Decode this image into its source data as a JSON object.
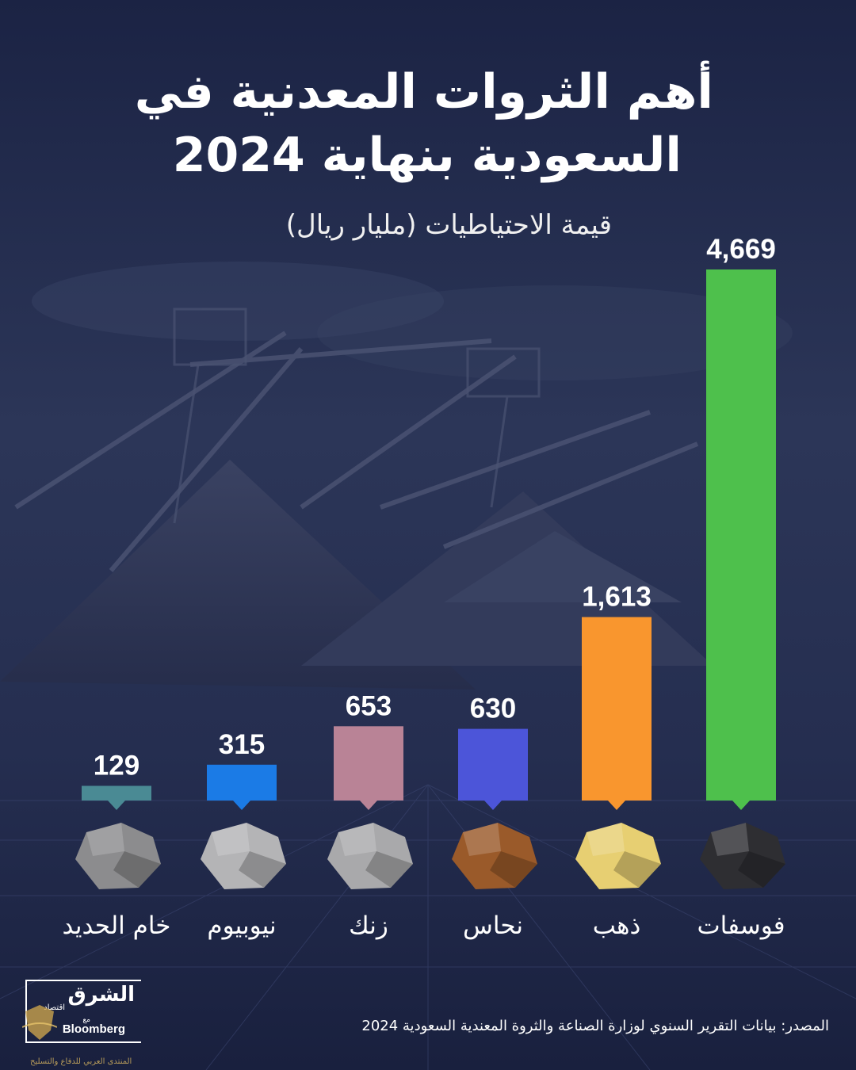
{
  "title_line1": "أهم الثروات المعدنية في",
  "title_line2": "السعودية بنهاية 2024",
  "subtitle": "قيمة الاحتياطيات (مليار ريال)",
  "chart_data": {
    "type": "bar",
    "title": "أهم الثروات المعدنية في السعودية بنهاية 2024",
    "ylabel": "قيمة الاحتياطيات (مليار ريال)",
    "ylim": [
      0,
      4669
    ],
    "grid": false,
    "legend": "none",
    "categories": [
      "فوسفات",
      "ذهب",
      "نحاس",
      "زنك",
      "نيوبيوم",
      "خام الحديد"
    ],
    "value_labels": [
      "4,669",
      "1,613",
      "630",
      "653",
      "315",
      "129"
    ],
    "values": [
      4669,
      1613,
      630,
      653,
      315,
      129
    ],
    "colors": [
      "#4ec04c",
      "#f9962e",
      "#4c55d9",
      "#b98396",
      "#1b7be6",
      "#4a8a94"
    ],
    "rock_colors": [
      "#2e2e32",
      "#e7cf72",
      "#9a5a2a",
      "#a9a9ab",
      "#b4b4b6",
      "#8c8c8e"
    ]
  },
  "logo": {
    "name": "الشرق",
    "sub": "اقتصاد",
    "with": "مع",
    "partner": "Bloomberg"
  },
  "source": "المصدر: بيانات التقرير السنوي لوزارة الصناعة والثروة المعندية السعودية 2024",
  "watermark": "المنتدى العربي للدفاع والتسليح",
  "colors": {
    "background": "#1d2545",
    "text": "#ffffff"
  }
}
